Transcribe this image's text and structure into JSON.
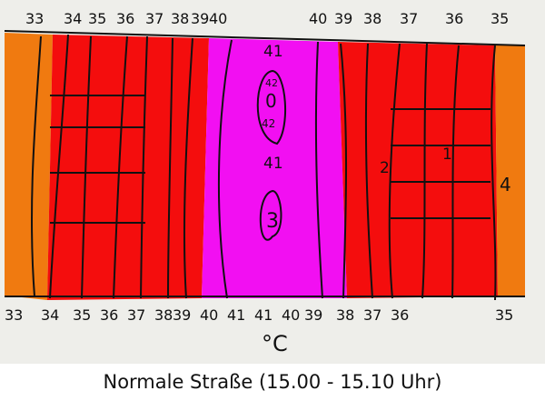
{
  "colors": {
    "orange": "#f07a10",
    "red": "#f40d0d",
    "magenta": "#f20ff2",
    "paper": "#eeeeea"
  },
  "top_labels": [
    "33",
    "34",
    "35",
    "36",
    "37",
    "38",
    "39",
    "40",
    "40",
    "39",
    "38",
    "37",
    "36",
    "35"
  ],
  "bottom_labels": [
    "33",
    "34",
    "35",
    "36",
    "37",
    "38",
    "39",
    "40",
    "41",
    "41",
    "40",
    "39",
    "38",
    "37",
    "36",
    "35"
  ],
  "inner_labels": [
    "41",
    "42",
    "0",
    "42",
    "41",
    "3",
    "2",
    "1",
    "4"
  ],
  "unit": "°C",
  "caption": "Normale Straße (15.00 - 15.10 Uhr)"
}
